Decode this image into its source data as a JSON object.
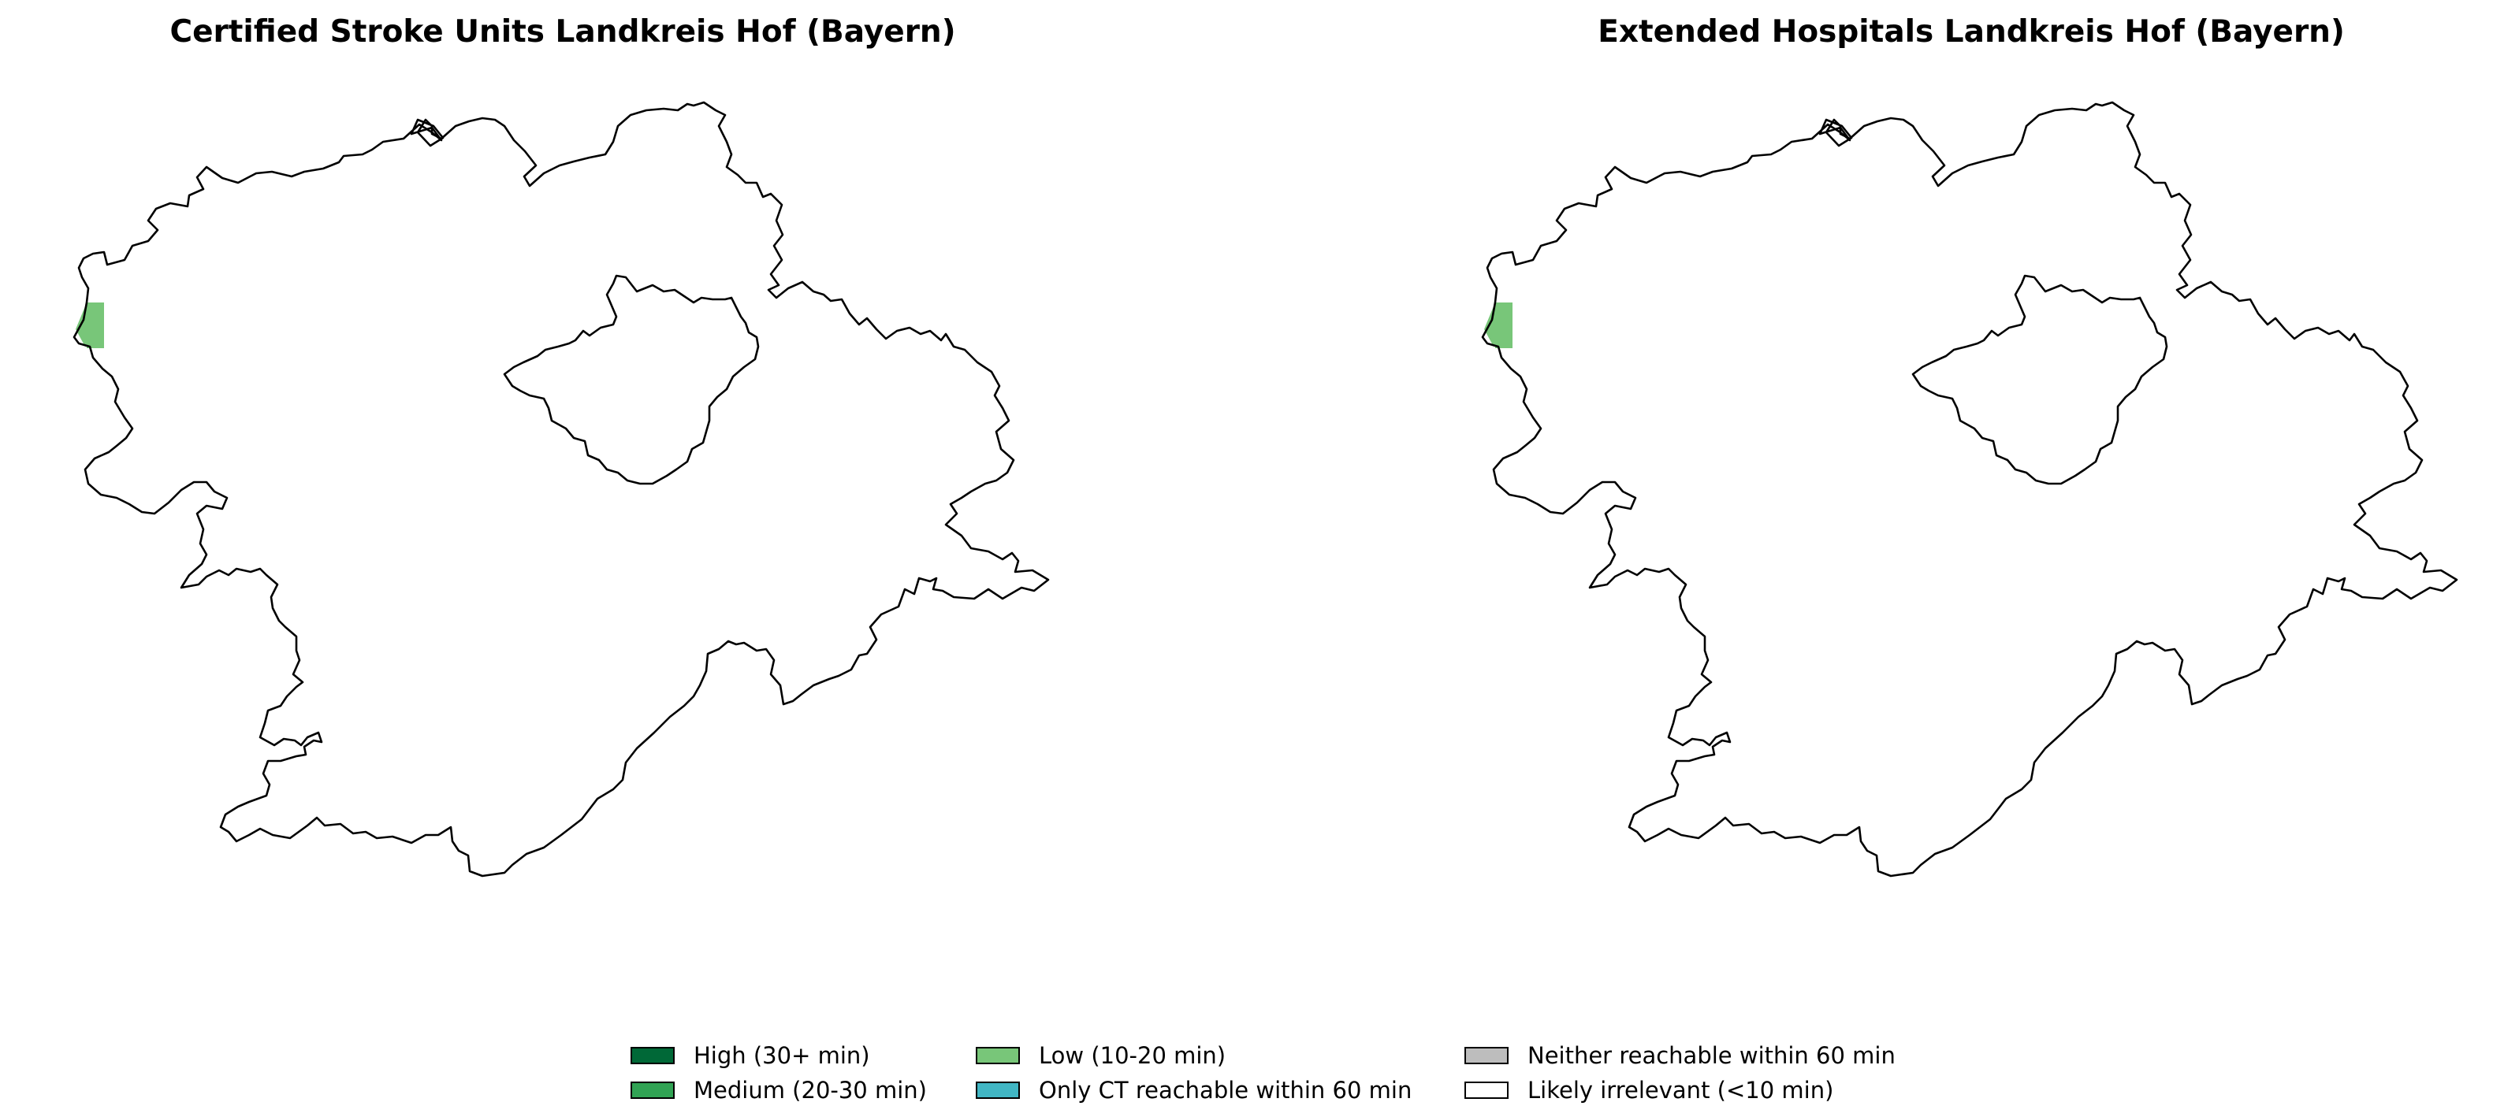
{
  "panels": [
    {
      "title": "Certified Stroke Units Landkreis Hof (Bayern)",
      "highlight_category": "Low (10-20 min)"
    },
    {
      "title": "Extended Hospitals Landkreis Hof (Bayern)",
      "highlight_category": "Low (10-20 min)"
    }
  ],
  "legend": [
    {
      "label": "High (30+ min)",
      "color": "#006837"
    },
    {
      "label": "Medium (20-30 min)",
      "color": "#31a354"
    },
    {
      "label": "Low (10-20 min)",
      "color": "#78c679"
    },
    {
      "label": "Only CT reachable within 60 min",
      "color": "#41b6c4"
    },
    {
      "label": "Neither reachable within 60 min",
      "color": "#bdbdbd"
    },
    {
      "label": "Likely irrelevant (<10 min)",
      "color": "#ffffff"
    }
  ],
  "style": {
    "outline_color": "#000000",
    "background": "#ffffff"
  }
}
